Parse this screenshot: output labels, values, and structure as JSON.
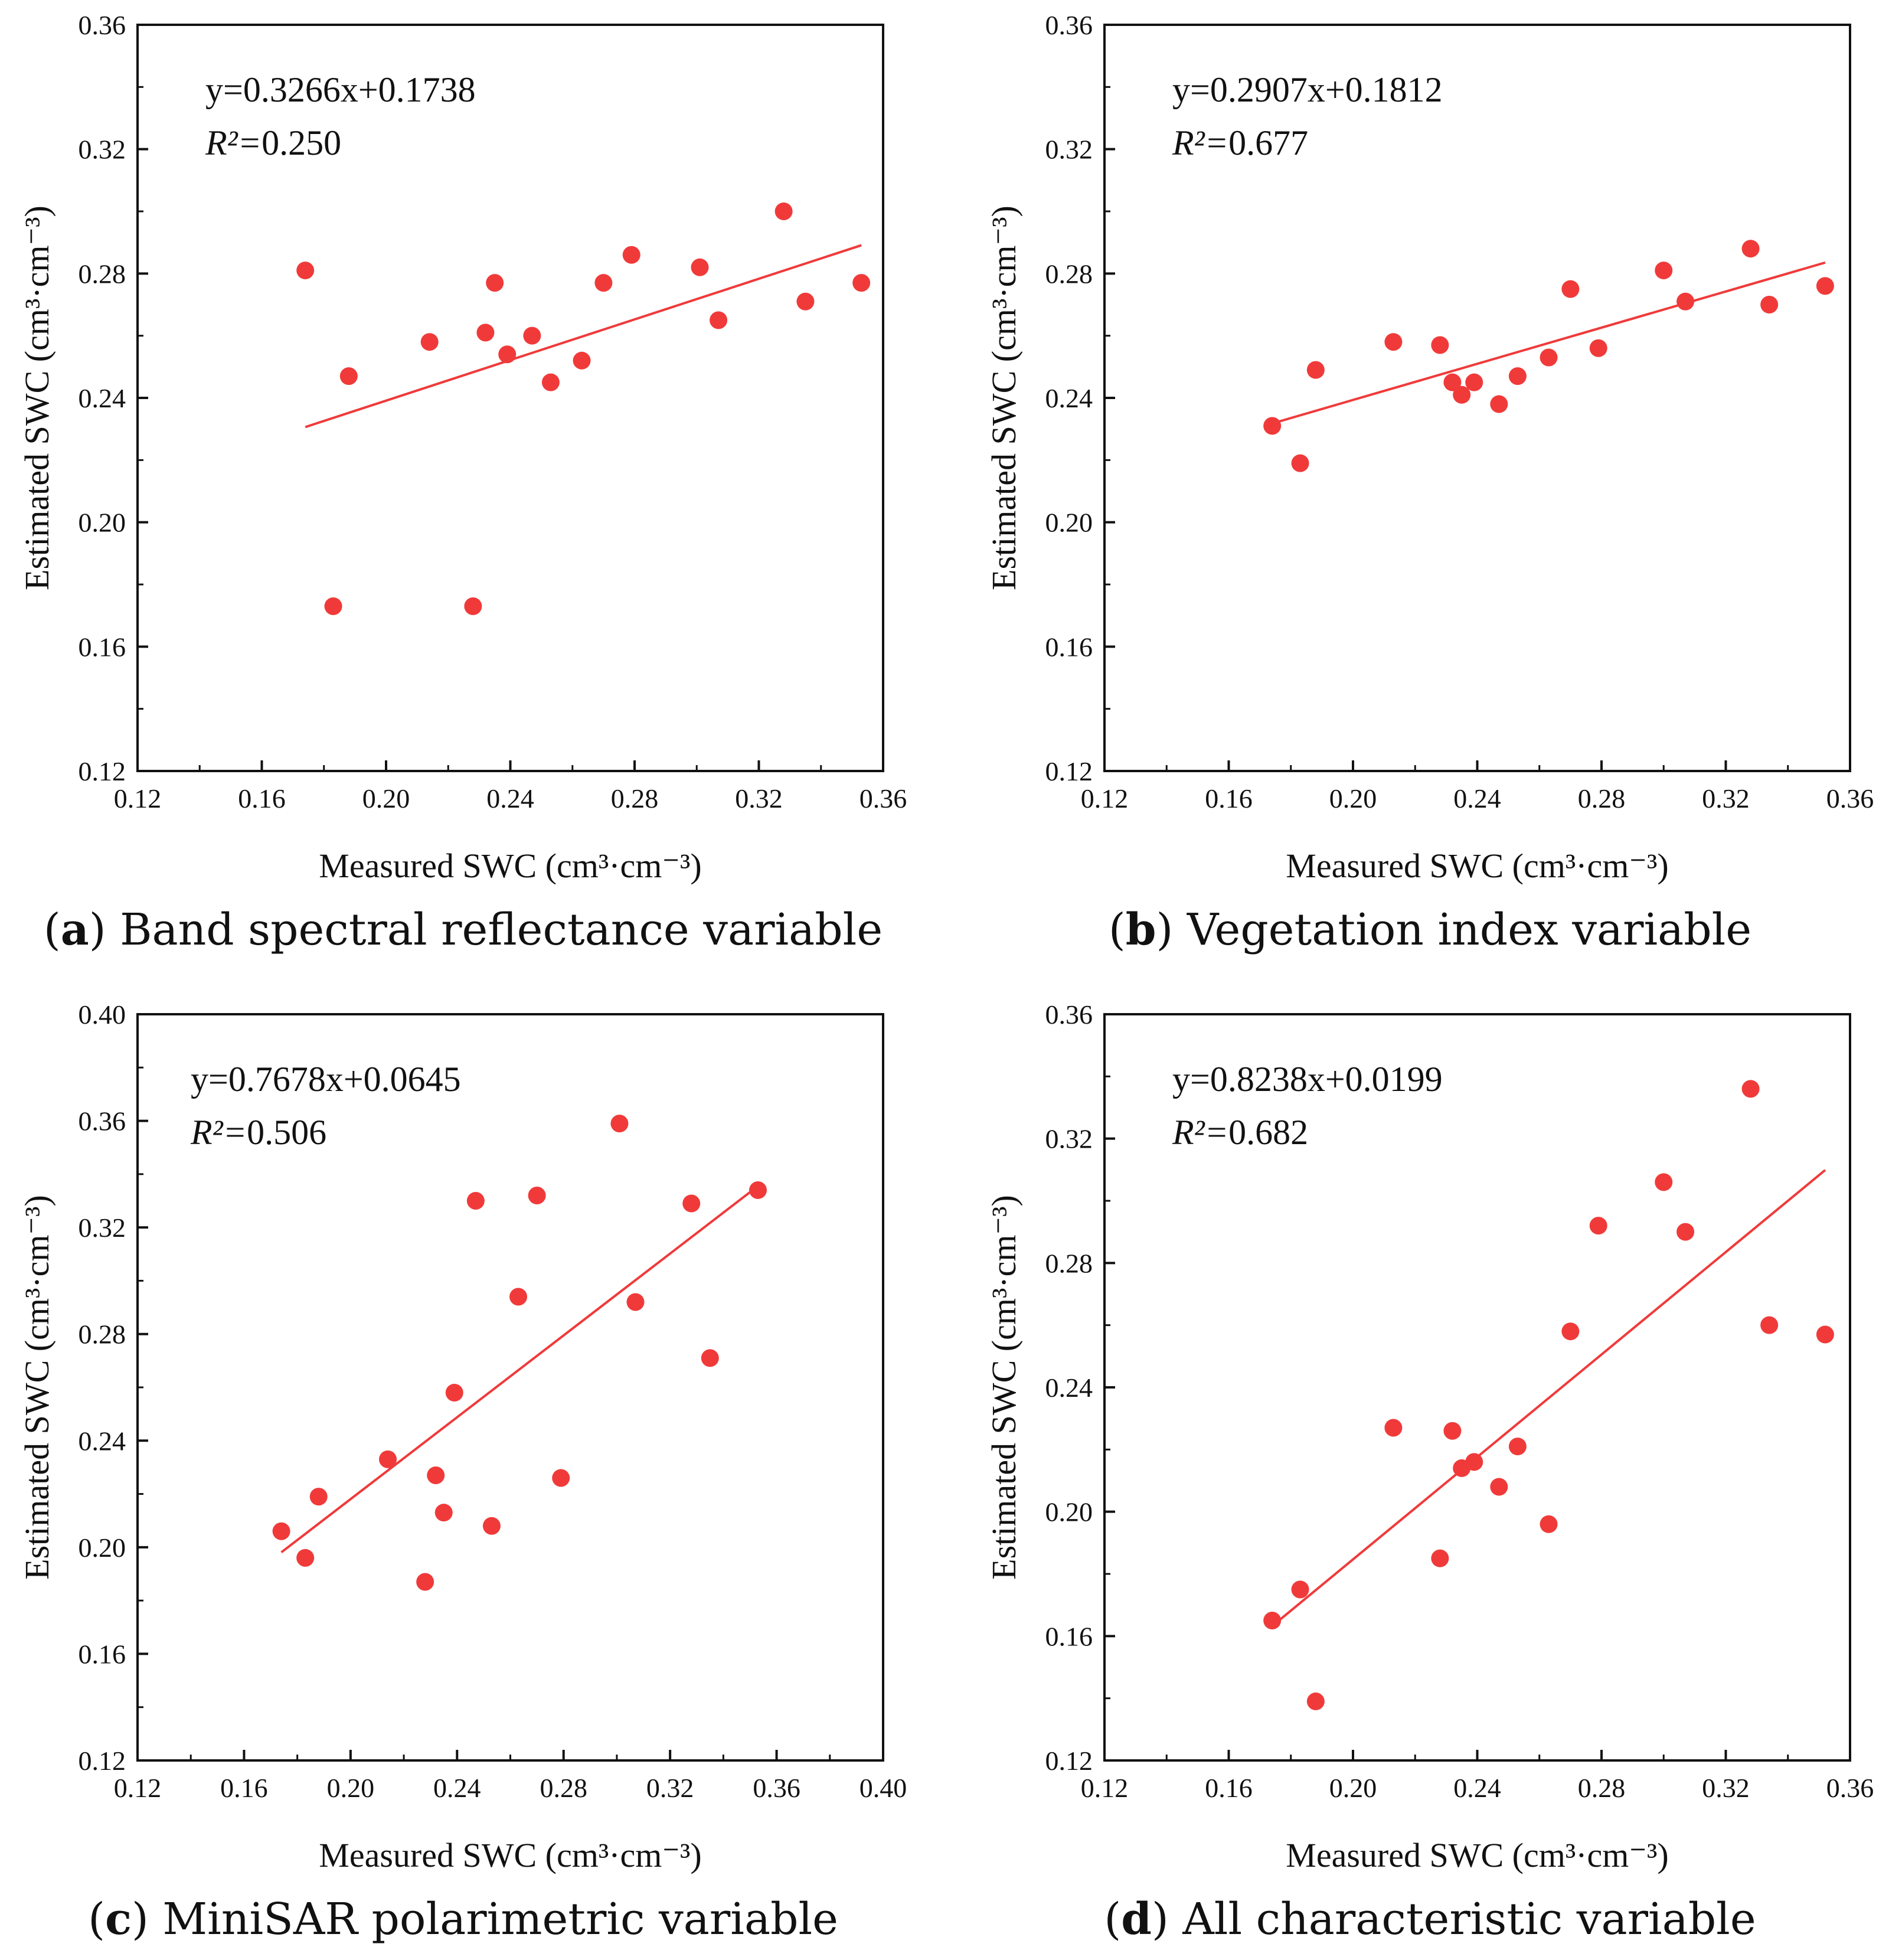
{
  "chart_data": [
    {
      "type": "scatter",
      "panel_letter": "a",
      "caption": "Band spectral reflectance variable",
      "equation": "y=0.3266x+0.1738",
      "r2_label": "R²=",
      "r2": "0.250",
      "slope": 0.3266,
      "intercept": 0.1738,
      "xlabel": "Measured SWC (cm³·cm⁻³)",
      "ylabel": "Estimated SWC (cm³·cm⁻³)",
      "xlim": [
        0.12,
        0.36
      ],
      "ylim": [
        0.12,
        0.36
      ],
      "xticks": [
        "0.12",
        "0.16",
        "0.20",
        "0.24",
        "0.28",
        "0.32",
        "0.36"
      ],
      "yticks": [
        "0.12",
        "0.16",
        "0.20",
        "0.24",
        "0.28",
        "0.32",
        "0.36"
      ],
      "x": [
        0.174,
        0.183,
        0.188,
        0.214,
        0.228,
        0.232,
        0.235,
        0.239,
        0.247,
        0.253,
        0.263,
        0.27,
        0.279,
        0.301,
        0.307,
        0.328,
        0.335,
        0.353
      ],
      "y": [
        0.281,
        0.173,
        0.247,
        0.258,
        0.173,
        0.261,
        0.277,
        0.254,
        0.26,
        0.245,
        0.252,
        0.277,
        0.286,
        0.282,
        0.265,
        0.3,
        0.271,
        0.277
      ],
      "color": "#f03a3a"
    },
    {
      "type": "scatter",
      "panel_letter": "b",
      "caption": "Vegetation index variable",
      "equation": "y=0.2907x+0.1812",
      "r2_label": "R²=",
      "r2": "0.677",
      "slope": 0.2907,
      "intercept": 0.1812,
      "xlabel": "Measured SWC (cm³·cm⁻³)",
      "ylabel": "Estimated SWC (cm³·cm⁻³)",
      "xlim": [
        0.12,
        0.36
      ],
      "ylim": [
        0.12,
        0.36
      ],
      "xticks": [
        "0.12",
        "0.16",
        "0.20",
        "0.24",
        "0.28",
        "0.32",
        "0.36"
      ],
      "yticks": [
        "0.12",
        "0.16",
        "0.20",
        "0.24",
        "0.28",
        "0.32",
        "0.36"
      ],
      "x": [
        0.174,
        0.183,
        0.188,
        0.213,
        0.228,
        0.232,
        0.235,
        0.239,
        0.247,
        0.253,
        0.263,
        0.27,
        0.279,
        0.3,
        0.307,
        0.328,
        0.334,
        0.352
      ],
      "y": [
        0.231,
        0.219,
        0.249,
        0.258,
        0.257,
        0.245,
        0.241,
        0.245,
        0.238,
        0.247,
        0.253,
        0.275,
        0.256,
        0.281,
        0.271,
        0.288,
        0.27,
        0.276
      ],
      "color": "#f03a3a"
    },
    {
      "type": "scatter",
      "panel_letter": "c",
      "caption": "MiniSAR polarimetric variable",
      "equation": "y=0.7678x+0.0645",
      "r2_label": "R²=",
      "r2": "0.506",
      "slope": 0.7678,
      "intercept": 0.0645,
      "xlabel": "Measured SWC (cm³·cm⁻³)",
      "ylabel": "Estimated SWC (cm³·cm⁻³)",
      "xlim": [
        0.12,
        0.4
      ],
      "ylim": [
        0.12,
        0.4
      ],
      "xticks": [
        "0.12",
        "0.16",
        "0.20",
        "0.24",
        "0.28",
        "0.32",
        "0.36",
        "0.40"
      ],
      "yticks": [
        "0.12",
        "0.16",
        "0.20",
        "0.24",
        "0.28",
        "0.32",
        "0.36",
        "0.40"
      ],
      "x": [
        0.174,
        0.183,
        0.188,
        0.214,
        0.228,
        0.232,
        0.235,
        0.239,
        0.247,
        0.253,
        0.263,
        0.27,
        0.279,
        0.301,
        0.307,
        0.328,
        0.335,
        0.353
      ],
      "y": [
        0.206,
        0.196,
        0.219,
        0.233,
        0.187,
        0.227,
        0.213,
        0.258,
        0.33,
        0.208,
        0.294,
        0.332,
        0.226,
        0.359,
        0.292,
        0.329,
        0.271,
        0.334
      ],
      "color": "#f03a3a"
    },
    {
      "type": "scatter",
      "panel_letter": "d",
      "caption": "All characteristic variable",
      "equation": "y=0.8238x+0.0199",
      "r2_label": "R²=",
      "r2": "0.682",
      "slope": 0.8238,
      "intercept": 0.0199,
      "xlabel": "Measured SWC (cm³·cm⁻³)",
      "ylabel": "Estimated SWC (cm³·cm⁻³)",
      "xlim": [
        0.12,
        0.36
      ],
      "ylim": [
        0.12,
        0.36
      ],
      "xticks": [
        "0.12",
        "0.16",
        "0.20",
        "0.24",
        "0.28",
        "0.32",
        "0.36"
      ],
      "yticks": [
        "0.12",
        "0.16",
        "0.20",
        "0.24",
        "0.28",
        "0.32",
        "0.36"
      ],
      "x": [
        0.174,
        0.183,
        0.188,
        0.213,
        0.228,
        0.232,
        0.235,
        0.239,
        0.247,
        0.253,
        0.263,
        0.27,
        0.279,
        0.3,
        0.307,
        0.328,
        0.334,
        0.352
      ],
      "y": [
        0.165,
        0.175,
        0.139,
        0.227,
        0.185,
        0.226,
        0.214,
        0.216,
        0.208,
        0.221,
        0.196,
        0.258,
        0.292,
        0.306,
        0.29,
        0.336,
        0.26,
        0.257
      ],
      "color": "#f03a3a"
    }
  ]
}
